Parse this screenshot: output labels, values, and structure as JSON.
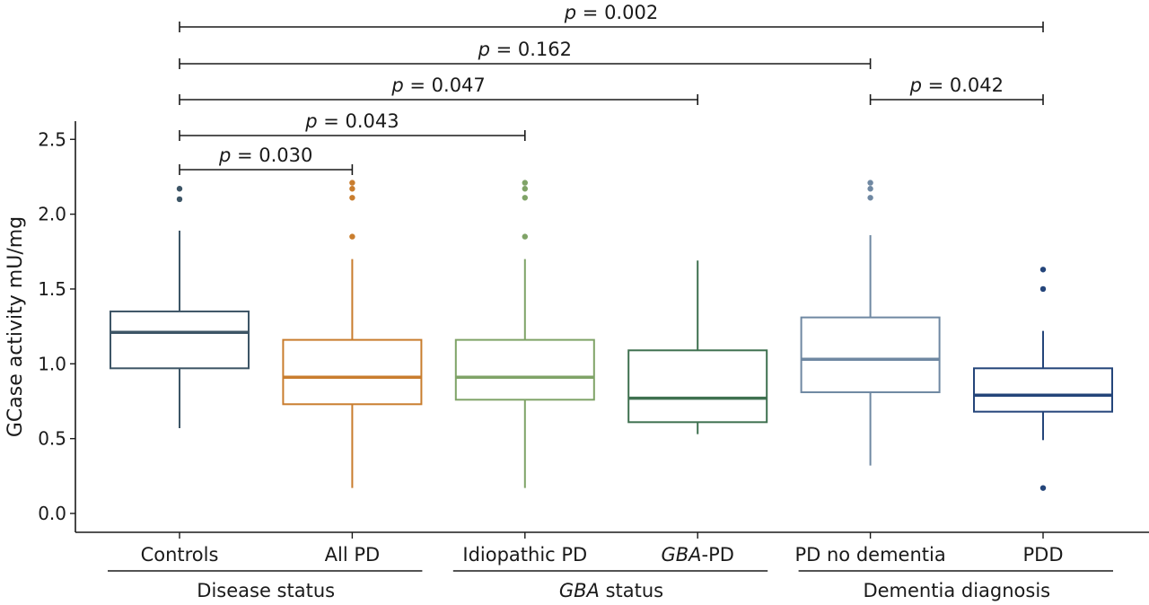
{
  "chart_data": {
    "type": "box",
    "title": "",
    "ylabel": "GCase activity mU/mg",
    "xlabel": "",
    "ylim": [
      0.0,
      2.6
    ],
    "yticks": [
      "0.0",
      "0.5",
      "1.0",
      "1.5",
      "2.0",
      "2.5"
    ],
    "ytick_values": [
      0.0,
      0.5,
      1.0,
      1.5,
      2.0,
      2.5
    ],
    "grid": false,
    "categories": [
      {
        "label": "Controls",
        "italic_prefix": "",
        "suffix": "Controls",
        "color": "#3d5566",
        "whisker_low": 0.57,
        "q1": 0.97,
        "median": 1.21,
        "q3": 1.35,
        "whisker_high": 1.89,
        "outliers": [
          2.1,
          2.17
        ]
      },
      {
        "label": "All PD",
        "italic_prefix": "",
        "suffix": "All PD",
        "color": "#c97d2e",
        "whisker_low": 0.17,
        "q1": 0.73,
        "median": 0.91,
        "q3": 1.16,
        "whisker_high": 1.7,
        "outliers": [
          1.85,
          2.11,
          2.17,
          2.21
        ]
      },
      {
        "label": "Idiopathic PD",
        "italic_prefix": "",
        "suffix": "Idiopathic PD",
        "color": "#7fa367",
        "whisker_low": 0.17,
        "q1": 0.76,
        "median": 0.91,
        "q3": 1.16,
        "whisker_high": 1.7,
        "outliers": [
          1.85,
          2.11,
          2.17,
          2.21
        ]
      },
      {
        "label": "GBA-PD",
        "italic_prefix": "GBA",
        "suffix": "-PD",
        "color": "#3f7150",
        "whisker_low": 0.53,
        "q1": 0.61,
        "median": 0.77,
        "q3": 1.09,
        "whisker_high": 1.69,
        "outliers": []
      },
      {
        "label": "PD no dementia",
        "italic_prefix": "",
        "suffix": "PD no dementia",
        "color": "#6f88a2",
        "whisker_low": 0.32,
        "q1": 0.81,
        "median": 1.03,
        "q3": 1.31,
        "whisker_high": 1.86,
        "outliers": [
          2.11,
          2.17,
          2.21
        ]
      },
      {
        "label": "PDD",
        "italic_prefix": "",
        "suffix": "PDD",
        "color": "#24457a",
        "whisker_low": 0.49,
        "q1": 0.68,
        "median": 0.79,
        "q3": 0.97,
        "whisker_high": 1.22,
        "outliers": [
          0.17,
          1.5,
          1.63
        ]
      }
    ],
    "groups": [
      {
        "label": "Disease status",
        "italic_prefix": "",
        "suffix": "Disease status",
        "members": [
          0,
          1
        ]
      },
      {
        "label": "GBA status",
        "italic_prefix": "GBA",
        "suffix": " status",
        "members": [
          2,
          3
        ]
      },
      {
        "label": "Dementia diagnosis",
        "italic_prefix": "",
        "suffix": "Dementia diagnosis",
        "members": [
          4,
          5
        ]
      }
    ],
    "comparisons": [
      {
        "from": 0,
        "to": 5,
        "p_symbol": "p",
        "text": " = 0.002",
        "level": 5
      },
      {
        "from": 0,
        "to": 4,
        "p_symbol": "p",
        "text": " = 0.162",
        "level": 4
      },
      {
        "from": 0,
        "to": 3,
        "p_symbol": "p",
        "text": " = 0.047",
        "level": 3
      },
      {
        "from": 4,
        "to": 5,
        "p_symbol": "p",
        "text": " = 0.042",
        "level": 3
      },
      {
        "from": 0,
        "to": 2,
        "p_symbol": "p",
        "text": " = 0.043",
        "level": 2
      },
      {
        "from": 0,
        "to": 1,
        "p_symbol": "p",
        "text": " = 0.030",
        "level": 1
      }
    ]
  }
}
